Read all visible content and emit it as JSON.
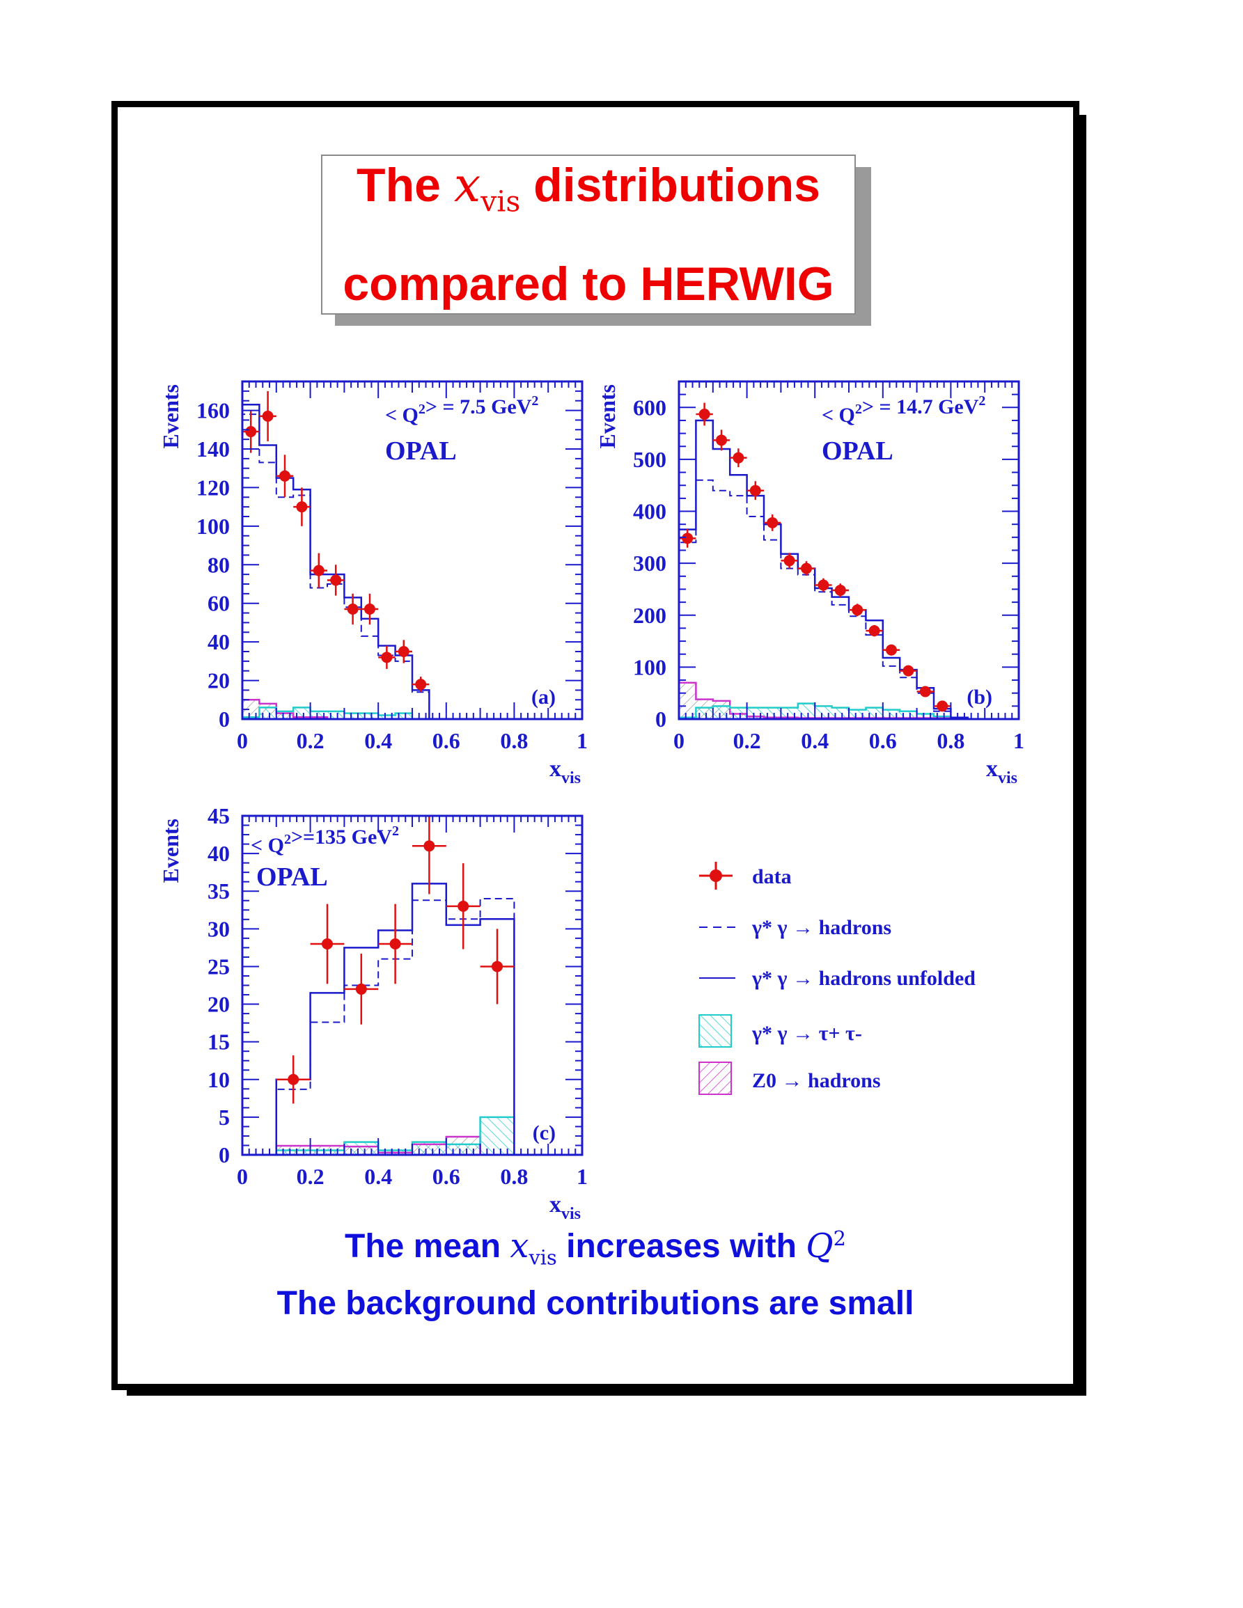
{
  "title": {
    "line1_prefix": "The",
    "line1_var": "x",
    "line1_sub": "vis",
    "line1_suffix": "distributions",
    "line2": "compared to HERWIG"
  },
  "footer": {
    "line1_prefix": "The mean",
    "line1_var": "x",
    "line1_sub": "vis",
    "line1_suffix": "increases with",
    "line1_q": "Q",
    "line1_q_sup": "2",
    "line2": "The background contributions are small"
  },
  "legend": {
    "data": "data",
    "hadrons": "γ* γ → hadrons",
    "unfolded": "γ* γ → hadrons unfolded",
    "tautau": "γ* γ → τ+ τ-",
    "z0": "Z0 → hadrons"
  },
  "colors": {
    "data": "#e01010",
    "mc": "#1a1acc",
    "tau": "#22cccc",
    "z0": "#cc33cc",
    "title": "#ee0000",
    "text": "#1010dd"
  },
  "chart_data": [
    {
      "type": "bar",
      "panel": "(a)",
      "experiment": "OPAL",
      "annotation": "< Q2> = 7.5 GeV2",
      "xlabel": "xvis",
      "ylabel": "Events",
      "xlim": [
        0,
        1
      ],
      "ylim": [
        0,
        175
      ],
      "xticks": [
        "0",
        "0.2",
        "0.4",
        "0.6",
        "0.8",
        "1"
      ],
      "yticks": [
        "0",
        "20",
        "40",
        "60",
        "80",
        "100",
        "120",
        "140",
        "160"
      ],
      "bin_edges": [
        0,
        0.05,
        0.1,
        0.15,
        0.2,
        0.25,
        0.3,
        0.35,
        0.4,
        0.45,
        0.5,
        0.55
      ],
      "data": {
        "x": [
          0.025,
          0.075,
          0.125,
          0.175,
          0.225,
          0.275,
          0.325,
          0.375,
          0.425,
          0.475,
          0.525
        ],
        "y": [
          149,
          157,
          126,
          110,
          77,
          72,
          57,
          57,
          32,
          35,
          18
        ],
        "err": [
          11,
          13,
          11,
          10,
          9,
          8,
          8,
          8,
          6,
          6,
          4
        ]
      },
      "unfolded": [
        163,
        142,
        125,
        119,
        75,
        75,
        63,
        52,
        38,
        33,
        15
      ],
      "hadrons": [
        158,
        133,
        115,
        116,
        68,
        70,
        58,
        43,
        33,
        30,
        14
      ],
      "tautau": [
        1,
        6,
        4,
        6,
        4,
        4,
        3,
        3,
        2,
        3,
        0
      ],
      "z0": [
        10,
        8,
        3,
        1,
        1,
        0,
        0,
        0,
        0,
        0,
        0
      ]
    },
    {
      "type": "bar",
      "panel": "(b)",
      "experiment": "OPAL",
      "annotation": "< Q2> = 14.7 GeV2",
      "xlabel": "xvis",
      "ylabel": "Events",
      "xlim": [
        0,
        1
      ],
      "ylim": [
        0,
        650
      ],
      "xticks": [
        "0",
        "0.2",
        "0.4",
        "0.6",
        "0.8",
        "1"
      ],
      "yticks": [
        "0",
        "100",
        "200",
        "300",
        "400",
        "500",
        "600"
      ],
      "bin_edges": [
        0,
        0.05,
        0.1,
        0.15,
        0.2,
        0.25,
        0.3,
        0.35,
        0.4,
        0.45,
        0.5,
        0.55,
        0.6,
        0.65,
        0.7,
        0.75,
        0.8,
        0.85
      ],
      "data": {
        "x": [
          0.025,
          0.075,
          0.125,
          0.175,
          0.225,
          0.275,
          0.325,
          0.375,
          0.425,
          0.475,
          0.525,
          0.575,
          0.625,
          0.675,
          0.725,
          0.775
        ],
        "y": [
          348,
          587,
          537,
          503,
          440,
          378,
          305,
          290,
          258,
          248,
          210,
          170,
          133,
          93,
          53,
          25
        ],
        "err": [
          18,
          22,
          20,
          18,
          18,
          16,
          15,
          14,
          13,
          13,
          12,
          11,
          10,
          8,
          6,
          4
        ]
      },
      "unfolded": [
        365,
        575,
        520,
        470,
        430,
        375,
        318,
        290,
        252,
        235,
        210,
        190,
        118,
        95,
        60,
        20,
        3
      ],
      "hadrons": [
        340,
        460,
        440,
        430,
        390,
        345,
        290,
        278,
        245,
        220,
        198,
        162,
        102,
        80,
        50,
        15,
        2
      ],
      "tautau": [
        3,
        22,
        25,
        22,
        22,
        22,
        22,
        30,
        25,
        22,
        18,
        22,
        18,
        15,
        10,
        5,
        0
      ],
      "z0": [
        70,
        38,
        35,
        10,
        5,
        3,
        3,
        2,
        2,
        2,
        2,
        2,
        2,
        2,
        2,
        2,
        0
      ]
    },
    {
      "type": "bar",
      "panel": "(c)",
      "experiment": "OPAL",
      "annotation": "< Q2>=135 GeV2",
      "xlabel": "xvis",
      "ylabel": "Events",
      "xlim": [
        0,
        1
      ],
      "ylim": [
        0,
        45
      ],
      "xticks": [
        "0",
        "0.2",
        "0.4",
        "0.6",
        "0.8",
        "1"
      ],
      "yticks": [
        "0",
        "5",
        "10",
        "15",
        "20",
        "25",
        "30",
        "35",
        "40",
        "45"
      ],
      "bin_edges": [
        0.1,
        0.2,
        0.3,
        0.4,
        0.5,
        0.6,
        0.7,
        0.8
      ],
      "data": {
        "x": [
          0.15,
          0.25,
          0.35,
          0.45,
          0.55,
          0.65,
          0.75
        ],
        "y": [
          10,
          28,
          22,
          28,
          41,
          33,
          25
        ],
        "err": [
          3.2,
          5.3,
          4.7,
          5.3,
          6.4,
          5.7,
          5.0
        ]
      },
      "unfolded": [
        10,
        21.5,
        27.5,
        29.8,
        36,
        30.5,
        31.3
      ],
      "hadrons": [
        8.7,
        17.6,
        22.5,
        26,
        33.8,
        31.3,
        34
      ],
      "tautau": [
        0.6,
        0.6,
        1.7,
        0.6,
        1.7,
        1.4,
        5
      ],
      "z0": [
        1.2,
        1.2,
        1.1,
        0.3,
        1.4,
        2.4,
        0
      ]
    }
  ]
}
